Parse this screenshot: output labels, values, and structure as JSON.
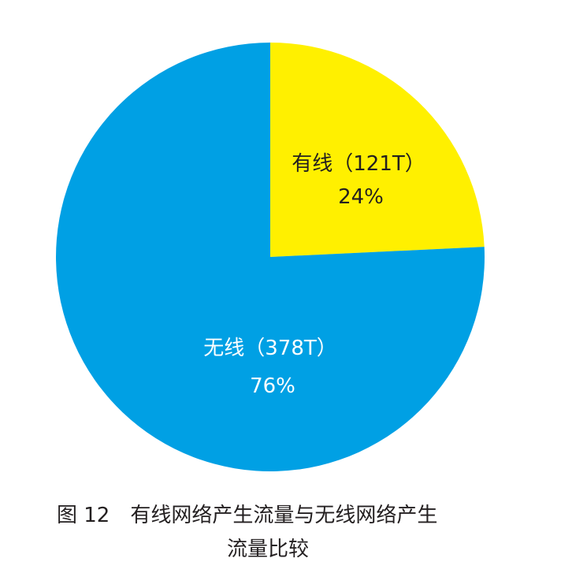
{
  "chart_data": {
    "type": "pie",
    "slices": [
      {
        "label": "有线（121T）",
        "value": 121,
        "percent_label": "24%",
        "color": "#FFF000",
        "text_color": "#231f20"
      },
      {
        "label": "无线（378T）",
        "value": 378,
        "percent_label": "76%",
        "color": "#00A0E4",
        "text_color": "#ffffff"
      }
    ],
    "start": "12 o'clock",
    "direction": "clockwise",
    "legend": "none"
  },
  "caption": {
    "figure_number": "图 12",
    "title_line1": "有线网络产生流量与无线网络产生",
    "title_line2": "流量比较"
  }
}
